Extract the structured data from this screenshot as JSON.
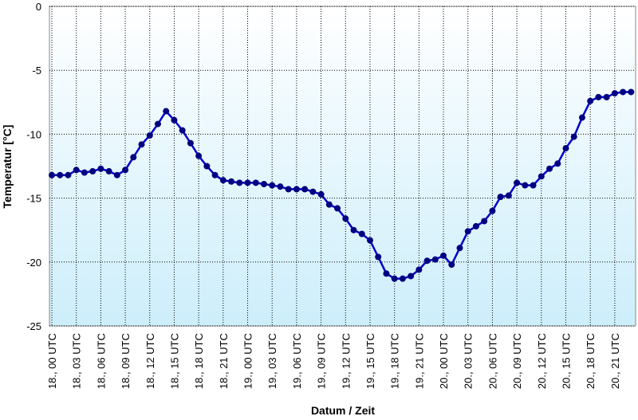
{
  "chart_data": {
    "type": "line",
    "x_label": "Datum / Zeit",
    "y_label": "Temperatur [°C]",
    "categories": [
      "18., 00 UTC",
      null,
      null,
      "18., 03 UTC",
      null,
      null,
      "18., 06 UTC",
      null,
      null,
      "18., 09 UTC",
      null,
      null,
      "18., 12 UTC",
      null,
      null,
      "18., 15 UTC",
      null,
      null,
      "18., 18 UTC",
      null,
      null,
      "18., 21 UTC",
      null,
      null,
      "19., 00 UTC",
      null,
      null,
      "19., 03 UTC",
      null,
      null,
      "19., 06 UTC",
      null,
      null,
      "19., 09 UTC",
      null,
      null,
      "19., 12 UTC",
      null,
      null,
      "19., 15 UTC",
      null,
      null,
      "19., 18 UTC",
      null,
      null,
      "19., 21 UTC",
      null,
      null,
      "20., 00 UTC",
      null,
      null,
      "20., 03 UTC",
      null,
      null,
      "20., 06 UTC",
      null,
      null,
      "20., 09 UTC",
      null,
      null,
      "20., 12 UTC",
      null,
      null,
      "20., 15 UTC",
      null,
      null,
      "20., 18 UTC",
      null,
      null,
      "20., 21 UTC",
      null,
      null
    ],
    "values": [
      -13.2,
      -13.2,
      -13.2,
      -12.8,
      -13.0,
      -12.9,
      -12.7,
      -12.9,
      -13.2,
      -12.8,
      -11.8,
      -10.8,
      -10.1,
      -9.2,
      -8.2,
      -8.9,
      -9.7,
      -10.7,
      -11.7,
      -12.5,
      -13.2,
      -13.6,
      -13.7,
      -13.8,
      -13.8,
      -13.8,
      -13.9,
      -14.0,
      -14.1,
      -14.3,
      -14.3,
      -14.3,
      -14.5,
      -14.7,
      -15.5,
      -15.8,
      -16.6,
      -17.5,
      -17.8,
      -18.3,
      -19.6,
      -20.9,
      -21.3,
      -21.3,
      -21.1,
      -20.6,
      -19.9,
      -19.8,
      -19.5,
      -20.2,
      -18.9,
      -17.6,
      -17.2,
      -16.8,
      -16.0,
      -14.9,
      -14.8,
      -13.8,
      -14.0,
      -14.0,
      -13.3,
      -12.7,
      -12.3,
      -11.1,
      -10.2,
      -8.7,
      -7.4,
      -7.1,
      -7.1,
      -6.8,
      -6.7,
      -6.7
    ],
    "color": "#0000cc",
    "marker_color": "#000080",
    "ylim": [
      -25,
      0
    ],
    "yticks": [
      -25,
      -20,
      -15,
      -10,
      -5,
      0
    ],
    "grid": true
  }
}
